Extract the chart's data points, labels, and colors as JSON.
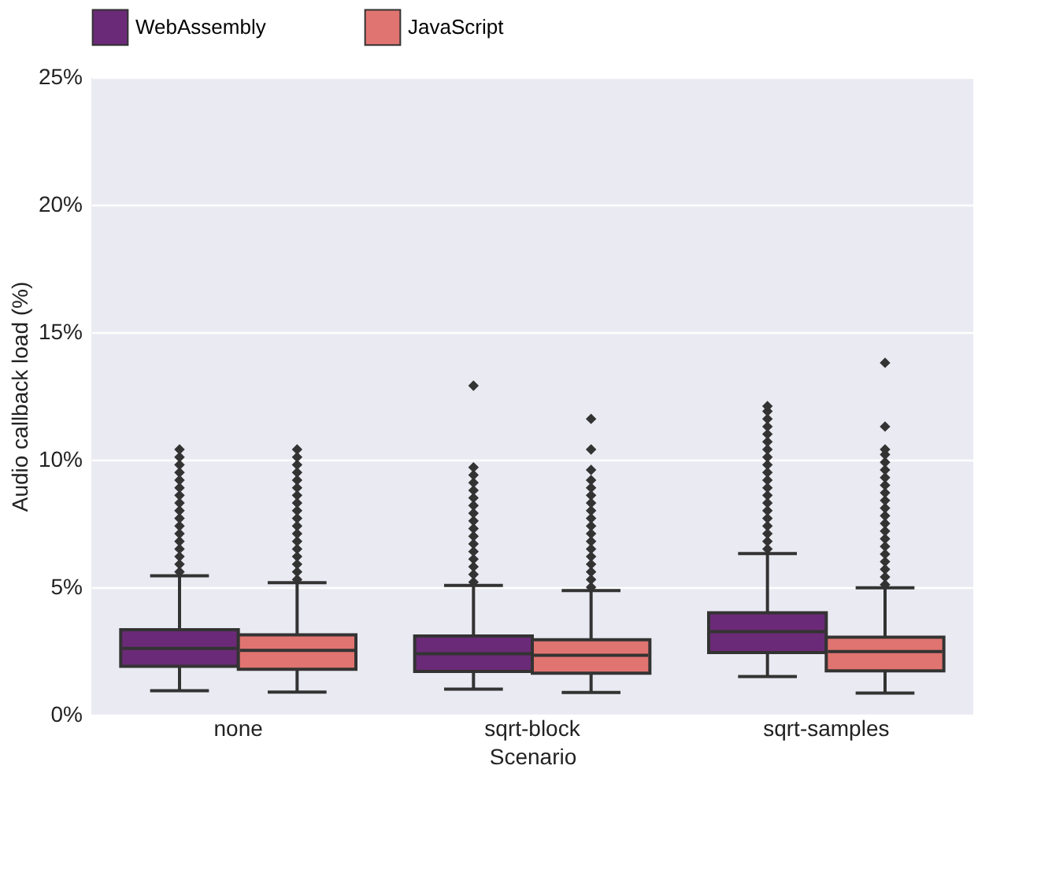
{
  "chart_data": {
    "type": "box",
    "xlabel": "Scenario",
    "ylabel": "Audio callback load (%)",
    "categories": [
      "none",
      "sqrt-block",
      "sqrt-samples"
    ],
    "ylim": [
      0,
      25
    ],
    "yticks": [
      {
        "value": 0,
        "label": "0%"
      },
      {
        "value": 5,
        "label": "5%"
      },
      {
        "value": 10,
        "label": "10%"
      },
      {
        "value": 15,
        "label": "15%"
      },
      {
        "value": 20,
        "label": "20%"
      },
      {
        "value": 25,
        "label": "25%"
      }
    ],
    "grid": "y",
    "legend": "top",
    "marker": "diamond",
    "series": [
      {
        "name": "WebAssembly",
        "color": "#6b2a77",
        "boxes": [
          {
            "low": 0.94,
            "q1": 1.9,
            "median": 2.6,
            "q3": 3.33,
            "high": 5.45,
            "outliers": [
              5.6,
              5.9,
              6.2,
              6.5,
              6.8,
              7.1,
              7.4,
              7.7,
              8.0,
              8.3,
              8.6,
              8.9,
              9.2,
              9.5,
              9.8,
              10.1,
              10.4
            ]
          },
          {
            "low": 1.0,
            "q1": 1.7,
            "median": 2.39,
            "q3": 3.09,
            "high": 5.07,
            "outliers": [
              5.2,
              5.5,
              5.8,
              6.1,
              6.4,
              6.7,
              7.0,
              7.3,
              7.6,
              7.9,
              8.2,
              8.5,
              8.8,
              9.1,
              9.4,
              9.7,
              12.9
            ]
          },
          {
            "low": 1.5,
            "q1": 2.44,
            "median": 3.26,
            "q3": 4.0,
            "high": 6.32,
            "outliers": [
              6.5,
              6.8,
              7.1,
              7.4,
              7.7,
              8.0,
              8.3,
              8.6,
              8.9,
              9.2,
              9.5,
              9.8,
              10.1,
              10.4,
              10.7,
              11.0,
              11.3,
              11.6,
              11.9,
              12.1
            ]
          }
        ]
      },
      {
        "name": "JavaScript",
        "color": "#e07470",
        "boxes": [
          {
            "low": 0.89,
            "q1": 1.78,
            "median": 2.52,
            "q3": 3.13,
            "high": 5.18,
            "outliers": [
              5.3,
              5.6,
              5.9,
              6.2,
              6.5,
              6.8,
              7.1,
              7.4,
              7.7,
              8.0,
              8.3,
              8.6,
              8.9,
              9.2,
              9.5,
              9.8,
              10.1,
              10.4
            ]
          },
          {
            "low": 0.87,
            "q1": 1.63,
            "median": 2.33,
            "q3": 2.94,
            "high": 4.87,
            "outliers": [
              5.0,
              5.3,
              5.6,
              5.9,
              6.2,
              6.5,
              6.8,
              7.1,
              7.4,
              7.7,
              8.0,
              8.3,
              8.6,
              8.9,
              9.2,
              9.6,
              10.4,
              11.6
            ]
          },
          {
            "low": 0.85,
            "q1": 1.72,
            "median": 2.48,
            "q3": 3.04,
            "high": 4.98,
            "outliers": [
              5.1,
              5.4,
              5.7,
              6.0,
              6.3,
              6.6,
              6.9,
              7.2,
              7.5,
              7.8,
              8.1,
              8.4,
              8.7,
              9.0,
              9.3,
              9.6,
              9.9,
              10.2,
              10.4,
              11.3,
              13.8
            ]
          }
        ]
      }
    ]
  }
}
